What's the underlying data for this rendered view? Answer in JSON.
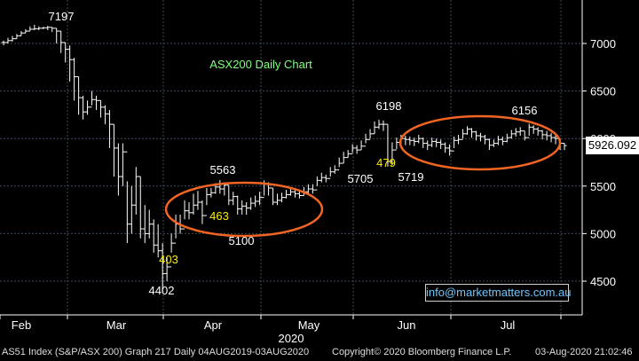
{
  "chart_data": {
    "type": "ohlc",
    "title": "ASX200 Daily Chart",
    "year_label": "2020",
    "x_labels": [
      "Feb",
      "Mar",
      "Apr",
      "May",
      "Jun",
      "Jul"
    ],
    "y_ticks": [
      4500,
      5000,
      5500,
      6000,
      6500,
      7000
    ],
    "ylim": [
      4150,
      7500
    ],
    "last_value": "5926.092",
    "annotations_white": [
      {
        "label": "7197",
        "value": 7197,
        "kind": "high"
      },
      {
        "label": "4402",
        "value": 4402,
        "kind": "low"
      },
      {
        "label": "5563",
        "value": 5563,
        "kind": "high"
      },
      {
        "label": "5100",
        "value": 5100,
        "kind": "low"
      },
      {
        "label": "6198",
        "value": 6198,
        "kind": "high"
      },
      {
        "label": "5705",
        "value": 5705,
        "kind": "low"
      },
      {
        "label": "5719",
        "value": 5719,
        "kind": "low"
      },
      {
        "label": "6156",
        "value": 6156,
        "kind": "high"
      }
    ],
    "annotations_yellow": [
      {
        "label": "403"
      },
      {
        "label": "463"
      },
      {
        "label": "479"
      }
    ],
    "closes": [
      7010,
      7030,
      7050,
      7080,
      7110,
      7130,
      7150,
      7155,
      7160,
      7165,
      7170,
      7160,
      7130,
      7010,
      6940,
      6830,
      6650,
      6430,
      6280,
      6330,
      6410,
      6400,
      6330,
      6260,
      6150,
      5900,
      5600,
      5860,
      5100,
      5300,
      5600,
      5050,
      5000,
      5100,
      4880,
      4820,
      4580,
      4650,
      4900,
      5100,
      5050,
      5240,
      5220,
      5300,
      5330,
      5190,
      5410,
      5430,
      5490,
      5470,
      5510,
      5350,
      5390,
      5260,
      5290,
      5270,
      5320,
      5340,
      5380,
      5520,
      5480,
      5330,
      5350,
      5380,
      5410,
      5440,
      5420,
      5400,
      5440,
      5470,
      5460,
      5560,
      5590,
      5580,
      5650,
      5670,
      5740,
      5800,
      5840,
      5900,
      5880,
      5920,
      5990,
      6050,
      6120,
      6150,
      6150,
      5760,
      5880,
      5960,
      6000,
      5990,
      5980,
      5970,
      6000,
      5950,
      5930,
      5970,
      5960,
      5940,
      5900,
      5870,
      5980,
      5990,
      6050,
      6100,
      6070,
      6030,
      6020,
      5990,
      5930,
      5950,
      5990,
      5970,
      6010,
      6050,
      6070,
      6080,
      6010,
      6120,
      6100,
      6080,
      6040,
      6030,
      6010,
      6000,
      5950,
      5926
    ],
    "highs": [
      7030,
      7060,
      7080,
      7100,
      7130,
      7150,
      7180,
      7197,
      7180,
      7175,
      7185,
      7170,
      7160,
      7130,
      7010,
      6980,
      6850,
      6650,
      6450,
      6400,
      6500,
      6450,
      6400,
      6350,
      6300,
      6150,
      5950,
      5950,
      5550,
      5500,
      5700,
      5600,
      5300,
      5250,
      5150,
      5100,
      4900,
      4750,
      5000,
      5200,
      5200,
      5350,
      5330,
      5420,
      5450,
      5350,
      5480,
      5480,
      5530,
      5563,
      5540,
      5510,
      5440,
      5400,
      5350,
      5330,
      5380,
      5400,
      5440,
      5560,
      5540,
      5480,
      5420,
      5430,
      5460,
      5480,
      5480,
      5460,
      5490,
      5520,
      5520,
      5600,
      5640,
      5620,
      5700,
      5720,
      5800,
      5860,
      5880,
      5940,
      5930,
      5980,
      6050,
      6100,
      6180,
      6198,
      6190,
      6150,
      5960,
      6010,
      6040,
      6030,
      6020,
      6010,
      6040,
      6010,
      5980,
      6010,
      6000,
      5990,
      5960,
      5940,
      6020,
      6040,
      6100,
      6130,
      6110,
      6080,
      6060,
      6040,
      6000,
      5990,
      6030,
      6020,
      6050,
      6090,
      6110,
      6120,
      6080,
      6156,
      6140,
      6120,
      6090,
      6080,
      6060,
      6050,
      6000,
      5950
    ],
    "lows": [
      6980,
      7000,
      7020,
      7050,
      7080,
      7110,
      7130,
      7140,
      7140,
      7150,
      7140,
      7120,
      7000,
      6900,
      6800,
      6600,
      6400,
      6250,
      6200,
      6250,
      6350,
      6300,
      6220,
      6150,
      5900,
      5600,
      5400,
      5500,
      4900,
      5000,
      5200,
      4950,
      4900,
      4950,
      4800,
      4750,
      4402,
      4500,
      4800,
      4950,
      5000,
      5150,
      5150,
      5200,
      5250,
      5100,
      5300,
      5380,
      5420,
      5420,
      5400,
      5300,
      5300,
      5200,
      5200,
      5200,
      5250,
      5280,
      5300,
      5400,
      5400,
      5300,
      5300,
      5330,
      5370,
      5400,
      5380,
      5370,
      5400,
      5420,
      5420,
      5500,
      5540,
      5540,
      5600,
      5630,
      5700,
      5740,
      5800,
      5850,
      5840,
      5880,
      5950,
      6000,
      6050,
      6100,
      6080,
      5705,
      5719,
      5890,
      5950,
      5930,
      5930,
      5920,
      5950,
      5900,
      5880,
      5910,
      5910,
      5890,
      5850,
      5820,
      5900,
      5940,
      6000,
      6040,
      6010,
      5980,
      5970,
      5940,
      5880,
      5910,
      5930,
      5930,
      5960,
      6000,
      6020,
      6030,
      5980,
      6030,
      6050,
      6030,
      5990,
      5980,
      5960,
      5940,
      5880,
      5880
    ]
  },
  "ellipse_labels": [],
  "footer": {
    "left": "AS51 Index (S&P/ASX 200) Graph 217  Daily 04AUG2019-03AUG2020",
    "center": "Copyright© 2020 Bloomberg Finance L.P.",
    "right": "03-Aug-2020 21:02:46"
  },
  "email": "info@marketmatters.com.au",
  "colors": {
    "background": "#000000",
    "grid": "#3c4a5a",
    "bars": "#ffffff",
    "ellipse": "#f26522",
    "annotation_yellow": "#ffee00",
    "title": "#7dff7d",
    "email": "#6ec6ff"
  }
}
